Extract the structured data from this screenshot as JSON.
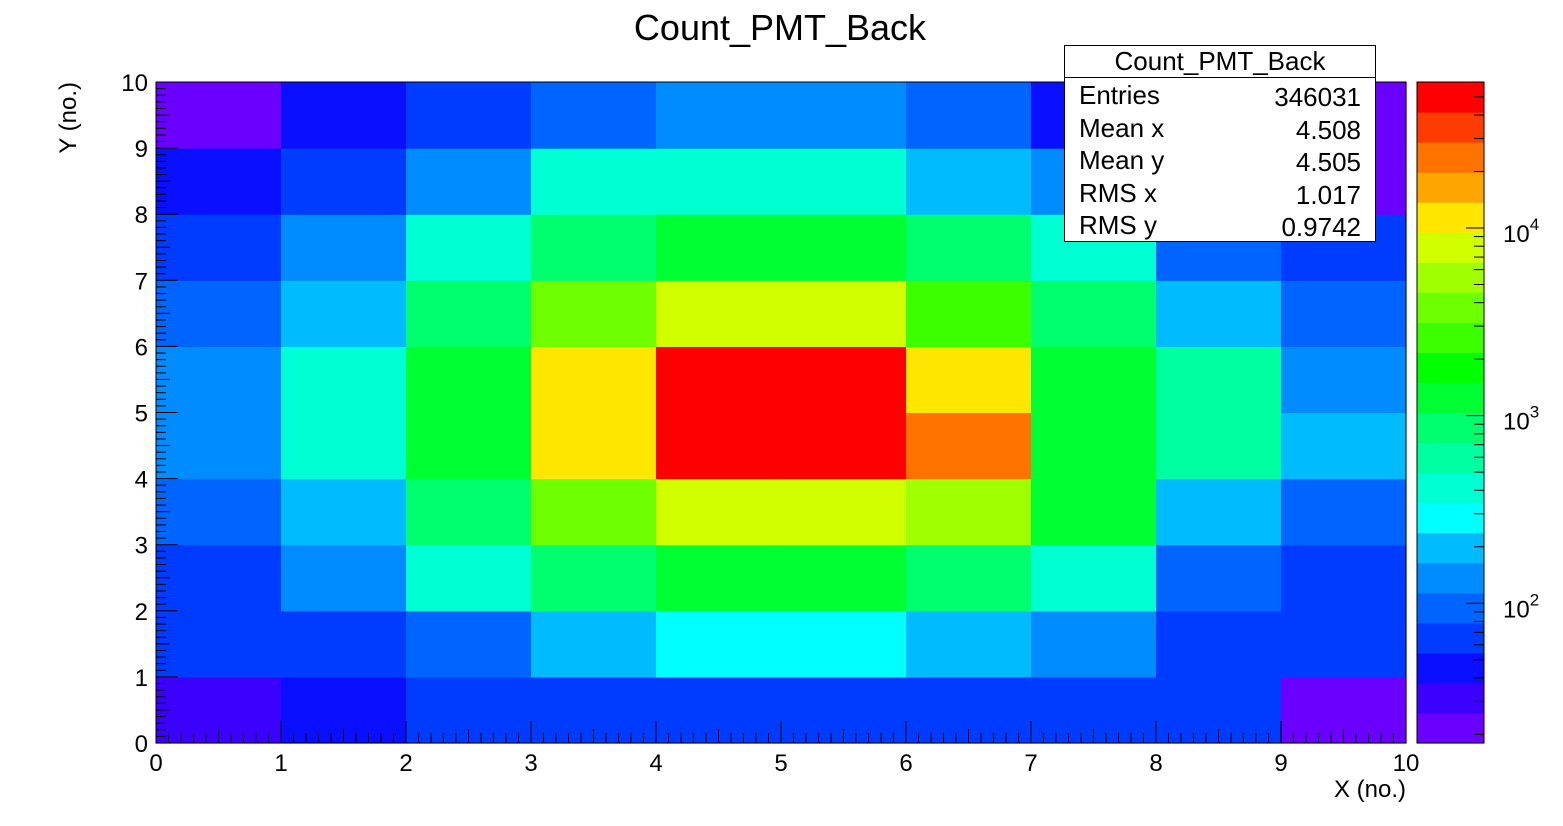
{
  "chart_data": {
    "type": "heatmap",
    "title": "Count_PMT_Back",
    "xlabel": "X (no.)",
    "ylabel": "Y (no.)",
    "xlim": [
      0,
      10
    ],
    "ylim": [
      0,
      10
    ],
    "x_ticks": [
      "0",
      "1",
      "2",
      "3",
      "4",
      "5",
      "6",
      "7",
      "8",
      "9",
      "10"
    ],
    "y_ticks": [
      "0",
      "1",
      "2",
      "3",
      "4",
      "5",
      "6",
      "7",
      "8",
      "9",
      "10"
    ],
    "color_scale": "log",
    "zlim": [
      18,
      60000
    ],
    "palette": [
      "#6a00ff",
      "#3c00ff",
      "#0a10ff",
      "#003cff",
      "#0064ff",
      "#008cff",
      "#00bcff",
      "#00ffff",
      "#00ffd2",
      "#00ffa0",
      "#00ff6e",
      "#00ff32",
      "#00ff00",
      "#3cff00",
      "#6eff00",
      "#a0ff00",
      "#d2ff00",
      "#ffe600",
      "#ffa500",
      "#ff7300",
      "#ff3c00",
      "#ff0000"
    ],
    "z_ticks": [
      {
        "value": 100,
        "base": "10",
        "exp": "2"
      },
      {
        "value": 1000,
        "base": "10",
        "exp": "3"
      },
      {
        "value": 10000,
        "base": "10",
        "exp": "4"
      }
    ],
    "bins": [
      [
        30,
        40,
        55,
        55,
        70,
        70,
        55,
        60,
        55,
        25
      ],
      [
        55,
        70,
        100,
        230,
        330,
        330,
        230,
        160,
        60,
        55
      ],
      [
        60,
        160,
        350,
        800,
        1500,
        1500,
        800,
        350,
        100,
        55
      ],
      [
        100,
        230,
        800,
        4000,
        9000,
        9000,
        5000,
        1500,
        230,
        100
      ],
      [
        160,
        350,
        1300,
        12000,
        50000,
        50000,
        20000,
        1200,
        600,
        230
      ],
      [
        160,
        350,
        1300,
        12000,
        50000,
        50000,
        11000,
        1300,
        600,
        150
      ],
      [
        100,
        230,
        800,
        4000,
        9000,
        9000,
        3000,
        800,
        230,
        100
      ],
      [
        55,
        150,
        350,
        800,
        1300,
        1300,
        800,
        350,
        100,
        60
      ],
      [
        40,
        60,
        150,
        350,
        350,
        350,
        230,
        150,
        30,
        25
      ],
      [
        25,
        40,
        60,
        100,
        150,
        150,
        100,
        40,
        30,
        20
      ]
    ]
  },
  "stats": {
    "title": "Count_PMT_Back",
    "rows": [
      {
        "label": "Entries",
        "value": "346031"
      },
      {
        "label": "Mean x",
        "value": "4.508"
      },
      {
        "label": "Mean y",
        "value": "4.505"
      },
      {
        "label": "RMS x",
        "value": "1.017"
      },
      {
        "label": "RMS y",
        "value": "0.9742"
      }
    ]
  }
}
